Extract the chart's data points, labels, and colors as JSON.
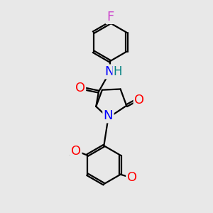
{
  "background_color": "#e8e8e8",
  "bond_color": "#000000",
  "bond_width": 1.6,
  "atom_colors": {
    "F": "#cc44cc",
    "O": "#ff0000",
    "N": "#0000ff",
    "H": "#008080",
    "C": "#000000"
  },
  "font_size": 13
}
